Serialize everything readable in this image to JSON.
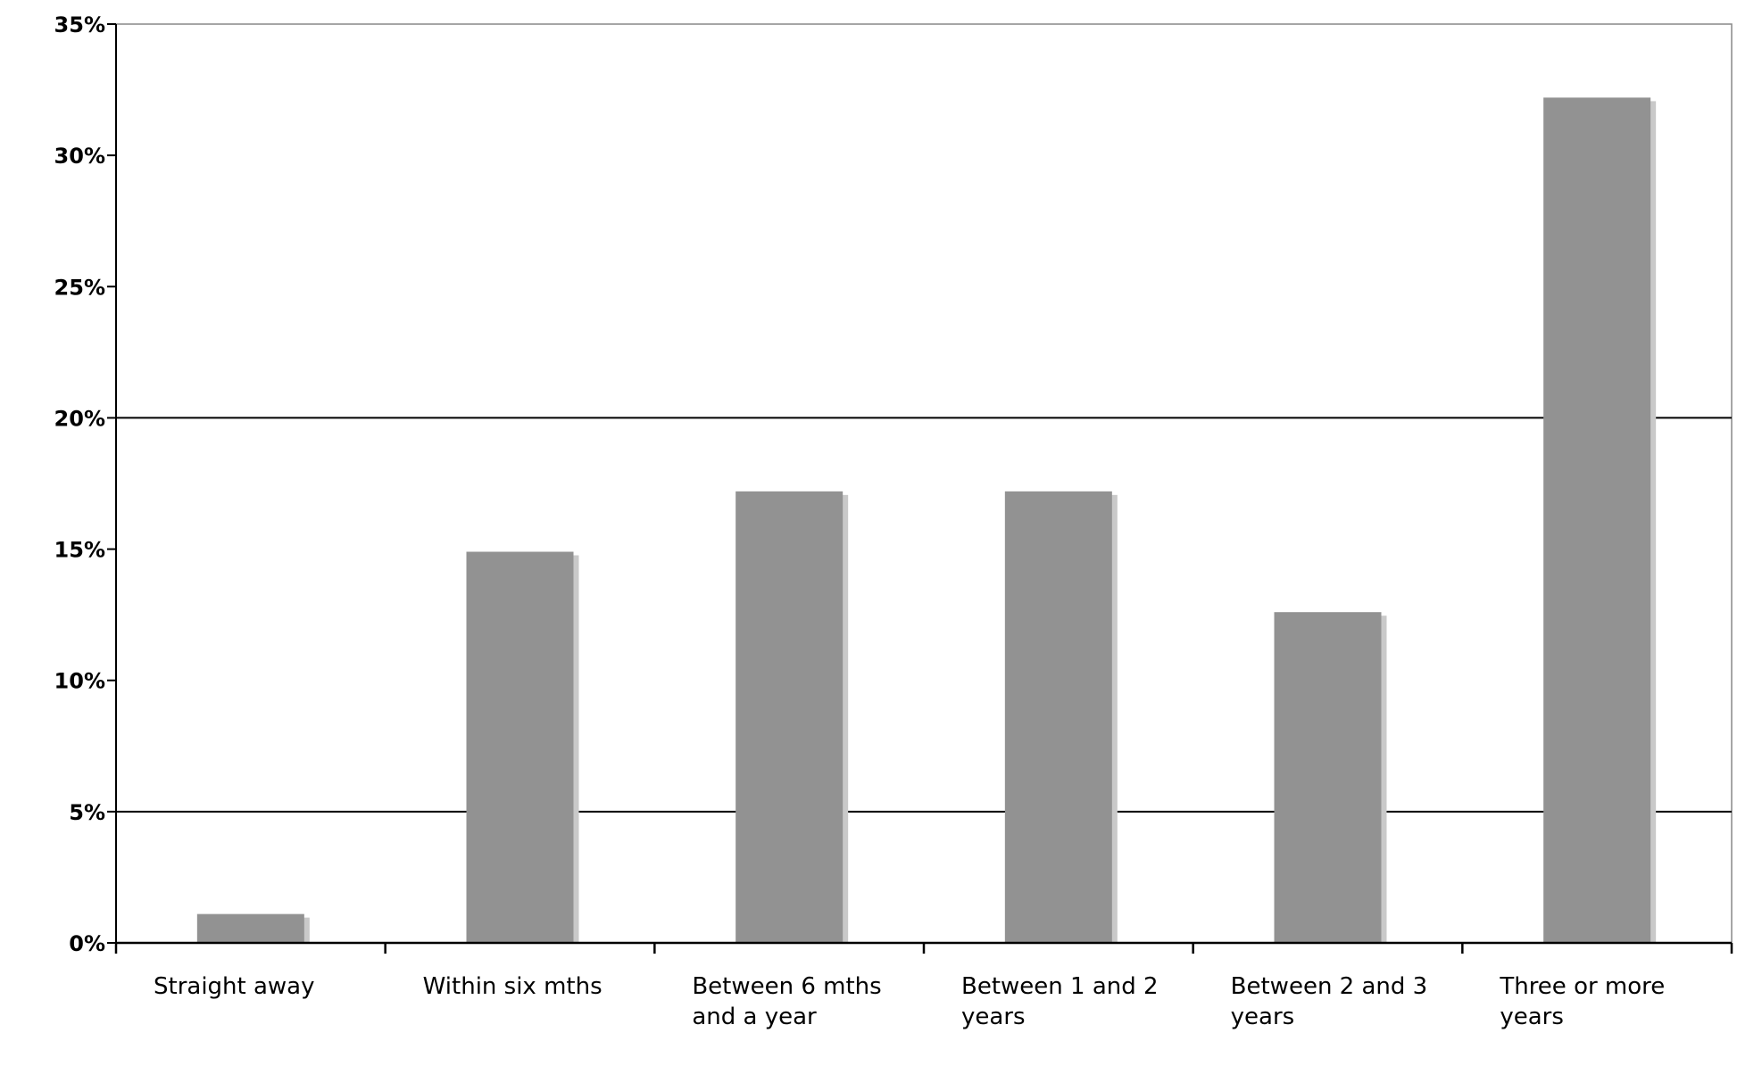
{
  "chart_data": {
    "type": "bar",
    "title": "",
    "xlabel": "",
    "ylabel": "",
    "categories": [
      [
        "Straight away"
      ],
      [
        "Within six mths"
      ],
      [
        "Between 6 mths",
        "and a year"
      ],
      [
        "Between 1 and 2",
        "years"
      ],
      [
        "Between 2 and 3",
        "years"
      ],
      [
        "Three or more",
        "years"
      ]
    ],
    "values": [
      1.1,
      14.9,
      17.2,
      17.2,
      12.6,
      32.2
    ],
    "ylim": [
      0,
      35
    ],
    "yticks": [
      0,
      5,
      10,
      15,
      20,
      25,
      30,
      35
    ],
    "ytick_labels": [
      "0%",
      "5%",
      "10%",
      "15%",
      "20%",
      "25%",
      "30%",
      "35%"
    ],
    "gridlines": [
      5,
      20
    ],
    "grid": true,
    "legend": "none",
    "colors": {
      "bar": "#929292",
      "shadow": "#c9c9c9",
      "axis": "#000000"
    }
  }
}
